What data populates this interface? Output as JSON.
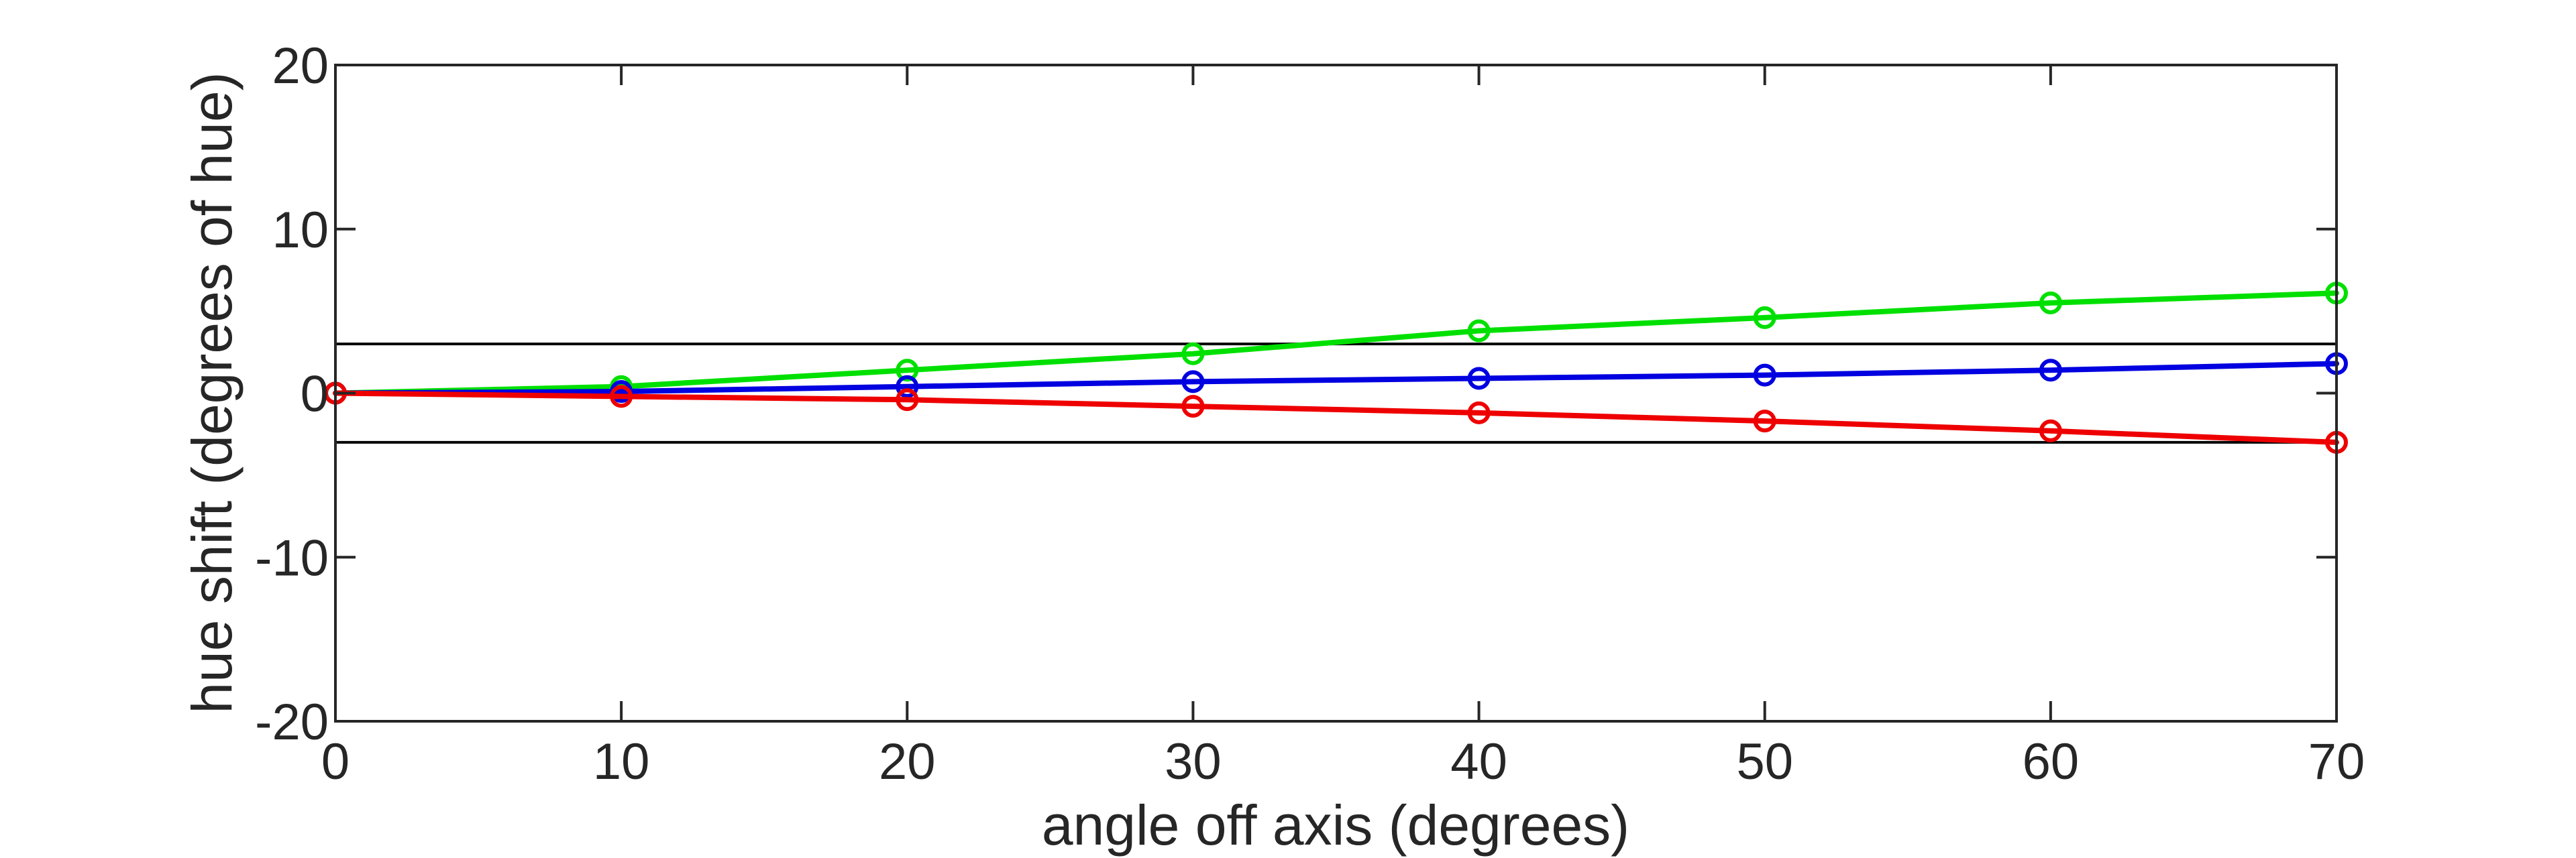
{
  "chart_data": {
    "type": "line",
    "title": "",
    "xlabel": "angle off axis (degrees)",
    "ylabel": "hue shift (degrees of hue)",
    "xlim": [
      0,
      70
    ],
    "ylim": [
      -20,
      20
    ],
    "x_ticks": [
      0,
      10,
      20,
      30,
      40,
      50,
      60,
      70
    ],
    "y_ticks": [
      -20,
      -10,
      0,
      10,
      20
    ],
    "x_tick_labels": [
      "0",
      "10",
      "20",
      "30",
      "40",
      "50",
      "60",
      "70"
    ],
    "y_tick_labels": [
      "-20",
      "-10",
      "0",
      "10",
      "20"
    ],
    "grid": false,
    "legend": "none",
    "x": [
      0,
      10,
      20,
      30,
      40,
      50,
      60,
      70
    ],
    "series": [
      {
        "color": "#00e000",
        "marker": "circle",
        "values": [
          0,
          0.4,
          1.4,
          2.4,
          3.8,
          4.6,
          5.5,
          6.1
        ]
      },
      {
        "color": "#0000e0",
        "marker": "circle",
        "values": [
          0,
          0.1,
          0.4,
          0.7,
          0.9,
          1.1,
          1.4,
          1.8
        ]
      },
      {
        "color": "#ee0000",
        "marker": "circle",
        "values": [
          0,
          -0.2,
          -0.4,
          -0.8,
          -1.2,
          -1.7,
          -2.3,
          -3.0
        ]
      }
    ],
    "reference_lines": [
      {
        "y": 3,
        "color": "#000000"
      },
      {
        "y": -3,
        "color": "#000000"
      }
    ]
  }
}
